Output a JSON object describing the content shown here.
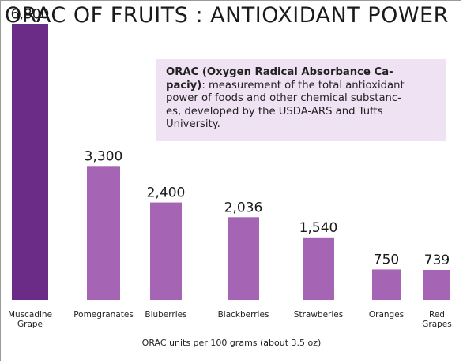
{
  "chart_data": {
    "type": "bar",
    "title": "ORAC OF FRUITS : ANTIOXIDANT POWER",
    "xlabel": "ORAC units per 100 grams (about 3.5 oz)",
    "ylabel": "",
    "ylim": [
      0,
      7000
    ],
    "grid": false,
    "categories": [
      [
        "Muscadine",
        "Grape"
      ],
      [
        "Pomegranates"
      ],
      [
        "Bluberries"
      ],
      [
        "Blackberries"
      ],
      [
        "Strawberies"
      ],
      [
        "Oranges"
      ],
      [
        "Red",
        "Grapes"
      ]
    ],
    "values": [
      6800,
      3300,
      2400,
      2036,
      1540,
      750,
      739
    ],
    "value_labels": [
      "6,800",
      "3,300",
      "2,400",
      "2,036",
      "1,540",
      "750",
      "739"
    ],
    "bar_colors": [
      "#6a2c86",
      "#a665b4",
      "#a665b4",
      "#a665b4",
      "#a665b4",
      "#a665b4",
      "#a665b4"
    ],
    "annotation": {
      "term": "ORAC (Oxygen Radical Absorbance Ca-paciy)",
      "term_lines": [
        "ORAC (Oxygen Radical Absorbance Ca-",
        "paciy)"
      ],
      "definition_lines": [
        ": measurement of the total antioxidant",
        "power of foods and other chemical substanc-",
        "es, developed by the USDA-ARS and Tufts",
        "University."
      ]
    }
  }
}
